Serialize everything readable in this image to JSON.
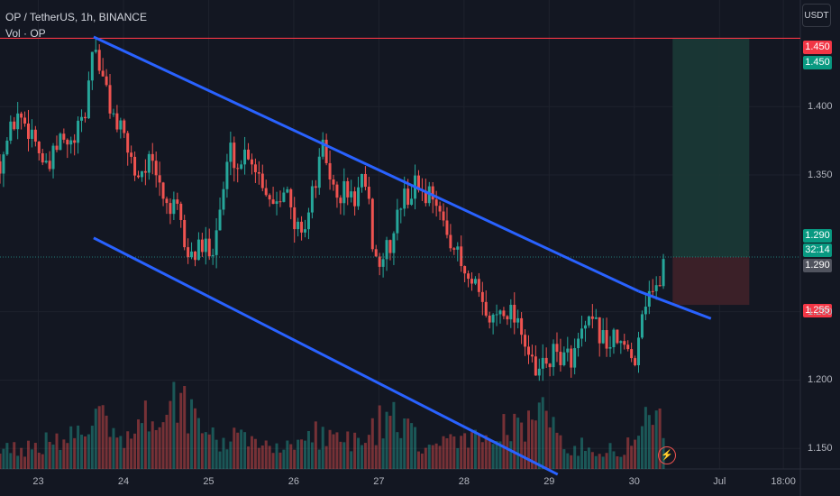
{
  "legend": {
    "symbol": "OP / TetherUS, 1h, BINANCE",
    "volume": "Vol · OP"
  },
  "currency_button": "USDT",
  "price_labels": {
    "resistance": "1.450",
    "target": "1.450",
    "entry": "1.290",
    "countdown": "32:14",
    "current": "1.290",
    "stop": "1.255"
  },
  "colors": {
    "background": "#131722",
    "up": "#26a69a",
    "down": "#ef5350",
    "channel": "#2962ff",
    "resistance": "#f23645",
    "target_zone": "#1b3a36",
    "stop_zone": "#3d2129"
  },
  "icons": [
    "lightning-icon"
  ],
  "chart_data": {
    "type": "candlestick",
    "symbol": "OP / TetherUS",
    "interval": "1h",
    "exchange": "BINANCE",
    "y_ticks": [
      "1.150",
      "1.200",
      "1.250",
      "1.350",
      "1.400"
    ],
    "x_ticks": [
      {
        "label": "23",
        "day": 23
      },
      {
        "label": "24",
        "day": 24
      },
      {
        "label": "25",
        "day": 25
      },
      {
        "label": "26",
        "day": 26
      },
      {
        "label": "27",
        "day": 27
      },
      {
        "label": "28",
        "day": 28
      },
      {
        "label": "29",
        "day": 29
      },
      {
        "label": "30",
        "day": 30
      },
      {
        "label": "Jul",
        "day": 31
      },
      {
        "label": "18:00",
        "day": 31.75
      }
    ],
    "ylim": [
      1.135,
      1.478
    ],
    "xlim": [
      22.55,
      31.95
    ],
    "close_path": [
      [
        22.55,
        1.36
      ],
      [
        22.75,
        1.395
      ],
      [
        22.95,
        1.38
      ],
      [
        23.1,
        1.35
      ],
      [
        23.25,
        1.375
      ],
      [
        23.4,
        1.37
      ],
      [
        23.55,
        1.395
      ],
      [
        23.65,
        1.45
      ],
      [
        23.75,
        1.42
      ],
      [
        23.9,
        1.39
      ],
      [
        24.05,
        1.37
      ],
      [
        24.15,
        1.35
      ],
      [
        24.3,
        1.36
      ],
      [
        24.5,
        1.33
      ],
      [
        24.65,
        1.32
      ],
      [
        24.75,
        1.29
      ],
      [
        24.9,
        1.295
      ],
      [
        25.05,
        1.3
      ],
      [
        25.15,
        1.33
      ],
      [
        25.25,
        1.37
      ],
      [
        25.35,
        1.355
      ],
      [
        25.45,
        1.37
      ],
      [
        25.6,
        1.35
      ],
      [
        25.75,
        1.33
      ],
      [
        25.9,
        1.345
      ],
      [
        26.0,
        1.31
      ],
      [
        26.15,
        1.315
      ],
      [
        26.25,
        1.345
      ],
      [
        26.35,
        1.37
      ],
      [
        26.5,
        1.33
      ],
      [
        26.6,
        1.34
      ],
      [
        26.7,
        1.33
      ],
      [
        26.8,
        1.345
      ],
      [
        26.9,
        1.32
      ],
      [
        26.95,
        1.285
      ],
      [
        27.05,
        1.29
      ],
      [
        27.15,
        1.3
      ],
      [
        27.25,
        1.33
      ],
      [
        27.35,
        1.335
      ],
      [
        27.45,
        1.345
      ],
      [
        27.55,
        1.335
      ],
      [
        27.65,
        1.34
      ],
      [
        27.75,
        1.31
      ],
      [
        27.85,
        1.305
      ],
      [
        27.95,
        1.285
      ],
      [
        28.05,
        1.27
      ],
      [
        28.15,
        1.265
      ],
      [
        28.25,
        1.245
      ],
      [
        28.35,
        1.245
      ],
      [
        28.45,
        1.255
      ],
      [
        28.55,
        1.25
      ],
      [
        28.65,
        1.245
      ],
      [
        28.75,
        1.22
      ],
      [
        28.85,
        1.2
      ],
      [
        28.9,
        1.21
      ],
      [
        29.0,
        1.215
      ],
      [
        29.1,
        1.22
      ],
      [
        29.2,
        1.215
      ],
      [
        29.3,
        1.22
      ],
      [
        29.4,
        1.235
      ],
      [
        29.5,
        1.24
      ],
      [
        29.6,
        1.235
      ],
      [
        29.7,
        1.225
      ],
      [
        29.8,
        1.23
      ],
      [
        29.9,
        1.22
      ],
      [
        30.0,
        1.215
      ],
      [
        30.1,
        1.255
      ],
      [
        30.2,
        1.27
      ],
      [
        30.25,
        1.26
      ],
      [
        30.35,
        1.29
      ]
    ],
    "volume_profile": [
      [
        22.55,
        0.25
      ],
      [
        23.0,
        0.3
      ],
      [
        23.6,
        0.45
      ],
      [
        23.7,
        0.95
      ],
      [
        24.0,
        0.35
      ],
      [
        24.2,
        0.55
      ],
      [
        24.6,
        1.0
      ],
      [
        25.0,
        0.4
      ],
      [
        25.5,
        0.35
      ],
      [
        26.0,
        0.3
      ],
      [
        26.3,
        0.45
      ],
      [
        26.8,
        0.35
      ],
      [
        27.1,
        0.7
      ],
      [
        27.5,
        0.3
      ],
      [
        28.0,
        0.35
      ],
      [
        28.3,
        0.5
      ],
      [
        28.7,
        0.55
      ],
      [
        28.8,
        0.85
      ],
      [
        29.2,
        0.3
      ],
      [
        29.6,
        0.25
      ],
      [
        30.0,
        0.3
      ],
      [
        30.1,
        0.6
      ],
      [
        30.2,
        0.95
      ],
      [
        30.35,
        0.45
      ]
    ],
    "upper_channel": [
      [
        23.65,
        1.451
      ],
      [
        30.05,
        1.265
      ]
    ],
    "lower_channel": [
      [
        23.65,
        1.304
      ],
      [
        29.1,
        1.131
      ]
    ],
    "channel_extension": [
      [
        30.05,
        1.265
      ],
      [
        30.9,
        1.245
      ]
    ],
    "resistance_level": 1.45,
    "long_position": {
      "start_day": 30.45,
      "end_day": 31.35,
      "entry": 1.29,
      "target": 1.45,
      "stop": 1.255
    }
  }
}
